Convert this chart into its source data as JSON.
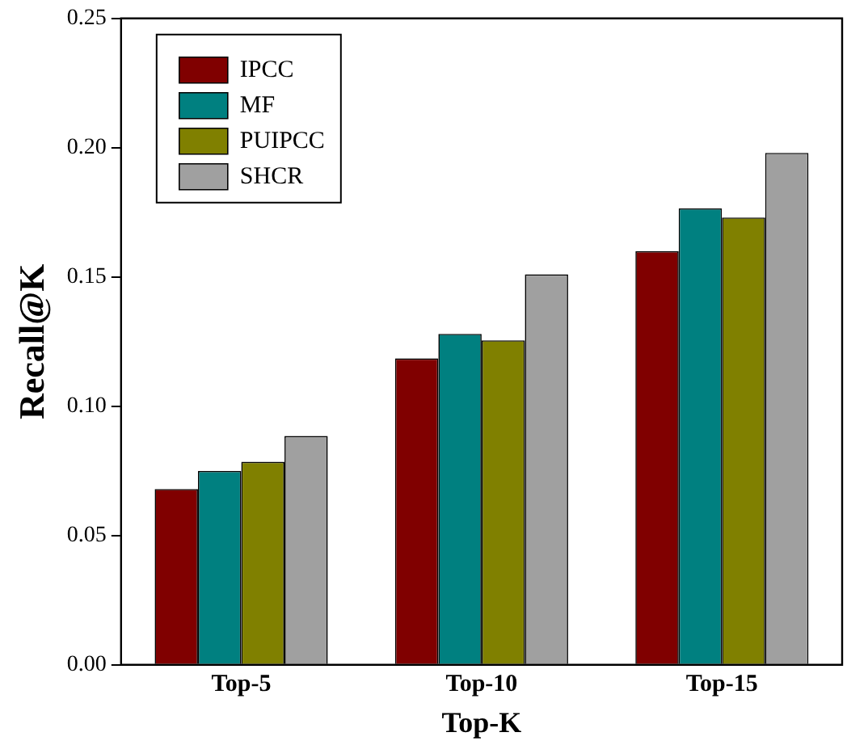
{
  "chart_data": {
    "type": "bar",
    "xlabel": "Top-K",
    "ylabel": "Recall@K",
    "categories": [
      "Top-5",
      "Top-10",
      "Top-15"
    ],
    "series": [
      {
        "name": "IPCC",
        "color": "#800000",
        "values": [
          0.068,
          0.1185,
          0.16
        ]
      },
      {
        "name": "MF",
        "color": "#008080",
        "values": [
          0.075,
          0.128,
          0.1765
        ]
      },
      {
        "name": "PUIPCC",
        "color": "#808000",
        "values": [
          0.0785,
          0.1255,
          0.173
        ]
      },
      {
        "name": "SHCR",
        "color": "#a0a0a0",
        "values": [
          0.0885,
          0.151,
          0.198
        ]
      }
    ],
    "ylim": [
      0,
      0.25
    ],
    "yticks": [
      {
        "value": 0,
        "label": "0.00"
      },
      {
        "value": 0.05,
        "label": "0.05"
      },
      {
        "value": 0.1,
        "label": "0.10"
      },
      {
        "value": 0.15,
        "label": "0.15"
      },
      {
        "value": 0.2,
        "label": "0.20"
      },
      {
        "value": 0.25,
        "label": "0.25"
      }
    ],
    "grid": false,
    "legend": "top left"
  }
}
